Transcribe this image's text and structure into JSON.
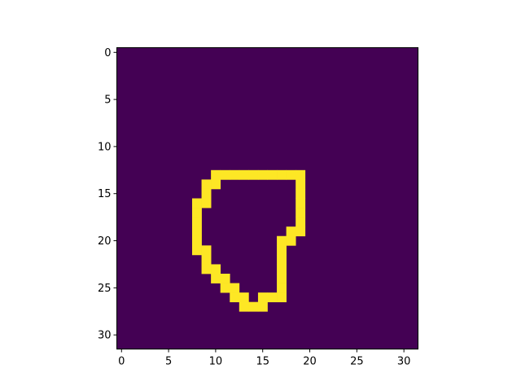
{
  "chart_data": {
    "type": "heatmap",
    "title": "",
    "xlabel": "",
    "ylabel": "",
    "grid": false,
    "legend": "none",
    "colormap": "viridis",
    "colors": {
      "background": "#440154",
      "foreground": "#fde725"
    },
    "shape": [
      32,
      32
    ],
    "xlim": [
      -0.5,
      31.5
    ],
    "ylim": [
      31.5,
      -0.5
    ],
    "xticks": [
      0,
      5,
      10,
      15,
      20,
      25,
      30
    ],
    "yticks": [
      0,
      5,
      10,
      15,
      20,
      25,
      30
    ],
    "xtick_labels": [
      "0",
      "5",
      "10",
      "15",
      "20",
      "25",
      "30"
    ],
    "ytick_labels": [
      "0",
      "5",
      "10",
      "15",
      "20",
      "25",
      "30"
    ],
    "value_range": [
      0,
      1
    ],
    "nonzero_value": 1,
    "nonzero_rows": [
      {
        "row": 13,
        "cols": [
          [
            10,
            19
          ]
        ]
      },
      {
        "row": 14,
        "cols": [
          [
            9,
            10
          ],
          [
            19,
            19
          ]
        ]
      },
      {
        "row": 15,
        "cols": [
          [
            9,
            9
          ],
          [
            19,
            19
          ]
        ]
      },
      {
        "row": 16,
        "cols": [
          [
            8,
            9
          ],
          [
            19,
            19
          ]
        ]
      },
      {
        "row": 17,
        "cols": [
          [
            8,
            8
          ],
          [
            19,
            19
          ]
        ]
      },
      {
        "row": 18,
        "cols": [
          [
            8,
            8
          ],
          [
            19,
            19
          ]
        ]
      },
      {
        "row": 19,
        "cols": [
          [
            8,
            8
          ],
          [
            18,
            19
          ]
        ]
      },
      {
        "row": 20,
        "cols": [
          [
            8,
            8
          ],
          [
            17,
            18
          ]
        ]
      },
      {
        "row": 21,
        "cols": [
          [
            8,
            9
          ],
          [
            17,
            17
          ]
        ]
      },
      {
        "row": 22,
        "cols": [
          [
            9,
            9
          ],
          [
            17,
            17
          ]
        ]
      },
      {
        "row": 23,
        "cols": [
          [
            9,
            10
          ],
          [
            17,
            17
          ]
        ]
      },
      {
        "row": 24,
        "cols": [
          [
            10,
            11
          ],
          [
            17,
            17
          ]
        ]
      },
      {
        "row": 25,
        "cols": [
          [
            11,
            12
          ],
          [
            17,
            17
          ]
        ]
      },
      {
        "row": 26,
        "cols": [
          [
            12,
            13
          ],
          [
            15,
            17
          ]
        ]
      },
      {
        "row": 27,
        "cols": [
          [
            13,
            15
          ]
        ]
      }
    ]
  }
}
